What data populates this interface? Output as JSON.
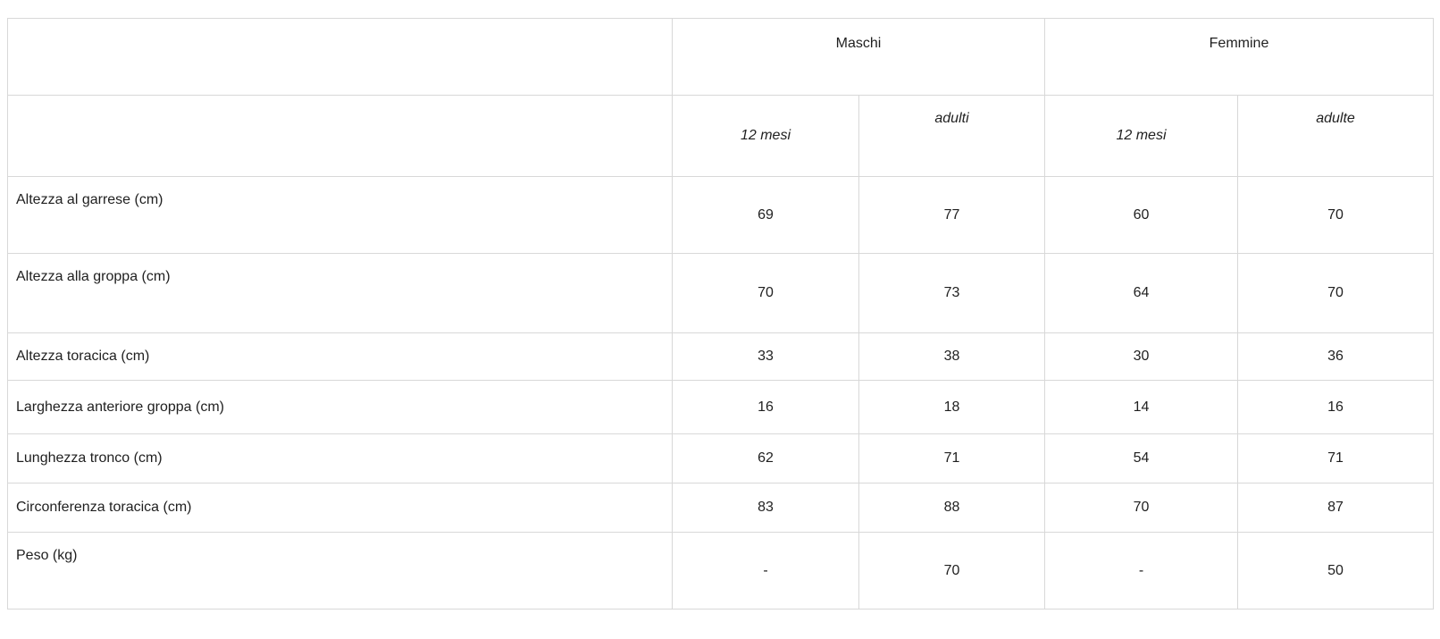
{
  "table": {
    "group_headers": [
      "Maschi",
      "Femmine"
    ],
    "sub_headers": [
      "12 mesi",
      "adulti",
      "12 mesi",
      "adulte"
    ],
    "rows": [
      {
        "label": "Altezza al garrese (cm)",
        "values": [
          "69",
          "77",
          "60",
          "70"
        ]
      },
      {
        "label": "Altezza alla groppa (cm)",
        "values": [
          "70",
          "73",
          "64",
          "70"
        ]
      },
      {
        "label": "Altezza toracica (cm)",
        "values": [
          "33",
          "38",
          "30",
          "36"
        ]
      },
      {
        "label": "Larghezza anteriore groppa (cm)",
        "values": [
          "16",
          "18",
          "14",
          "16"
        ]
      },
      {
        "label": "Lunghezza tronco (cm)",
        "values": [
          "62",
          "71",
          "54",
          "71"
        ]
      },
      {
        "label": "Circonferenza toracica (cm)",
        "values": [
          "83",
          "88",
          "70",
          "87"
        ]
      },
      {
        "label": "Peso (kg)",
        "values": [
          "-",
          "70",
          "-",
          "50"
        ]
      }
    ],
    "colors": {
      "border": "#d8d8d8",
      "text": "#1f1f1f",
      "background": "#ffffff"
    }
  }
}
